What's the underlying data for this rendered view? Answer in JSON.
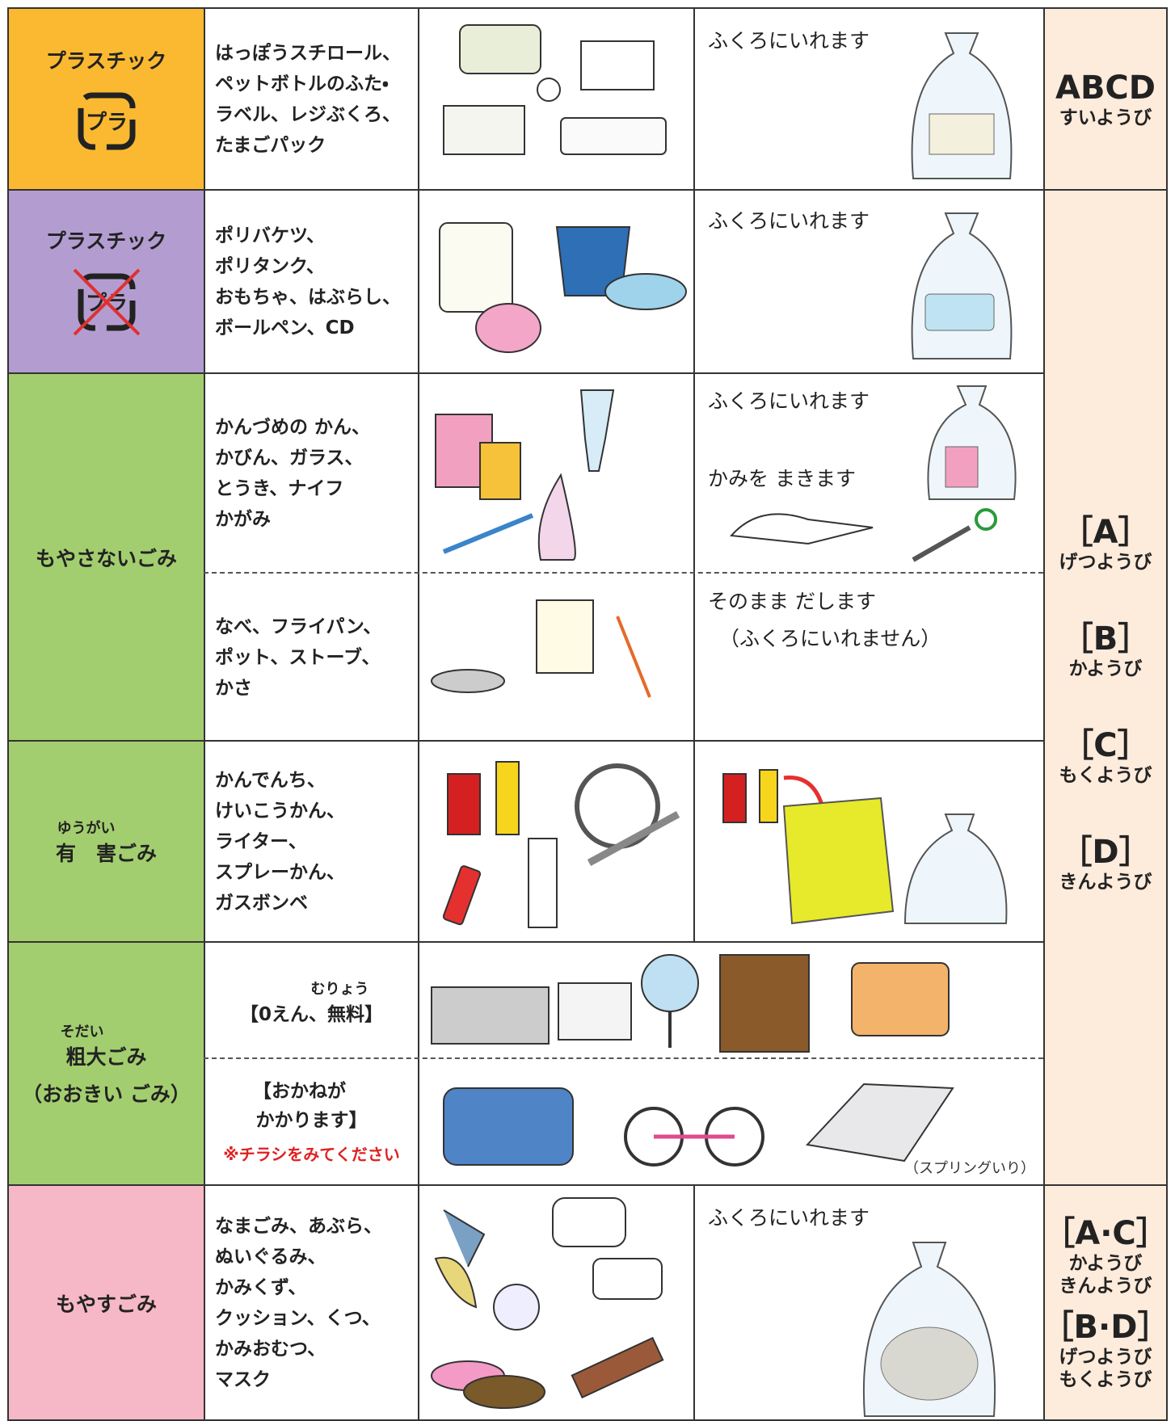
{
  "rows": [
    {
      "category": "プラスチック",
      "mark": "プラ",
      "items": [
        "はっぽうスチロール、",
        "ペットボトルのふた・",
        "ラベル、レジぶくろ、",
        "たまごパック"
      ],
      "instruction": "ふくろにいれます"
    },
    {
      "category": "プラスチック",
      "mark": "プラ",
      "items": [
        "ポリバケツ、",
        "ポリタンク、",
        "おもちゃ、はぶらし、",
        "ボールペン、CD"
      ],
      "instruction": "ふくろにいれます"
    },
    {
      "category": "もやさないごみ",
      "parts": [
        {
          "items": [
            "かんづめの かん、",
            "かびん、ガラス、",
            "とうき、ナイフ",
            "かがみ"
          ],
          "instructions": [
            "ふくろにいれます",
            "かみを まきます"
          ]
        },
        {
          "items": [
            "なべ、フライパン、",
            "ポット、ストーブ、",
            "かさ"
          ],
          "instructions": [
            "そのまま だします",
            "（ふくろにいれません）"
          ]
        }
      ]
    },
    {
      "reading": "ゆうがい",
      "category": "有　害ごみ",
      "items": [
        "かんでんち、",
        "けいこうかん、",
        "ライター、",
        "スプレーかん、",
        "ガスボンベ"
      ]
    },
    {
      "reading": "そだい",
      "category": "粗大ごみ",
      "category_note": "（おおきい ごみ）",
      "parts": [
        {
          "reading": "むりょう",
          "items": [
            "【0えん、無料】"
          ]
        },
        {
          "items": [
            "【おかねが",
            "かかります】"
          ],
          "note": "※チラシをみてください",
          "image_caption": "（スプリングいり）"
        }
      ]
    },
    {
      "category": "もやすごみ",
      "items": [
        "なまごみ、あぶら、",
        "ぬいぐるみ、",
        "かみくず、",
        "クッション、くつ、",
        "かみおむつ、",
        "マスク"
      ],
      "instruction": "ふくろにいれます"
    }
  ],
  "schedules": [
    {
      "groups": [
        {
          "label": "ABCD",
          "days": [
            "すいようび"
          ]
        }
      ]
    },
    {
      "groups": [
        {
          "label": "［A］",
          "days": [
            "げつようび"
          ]
        },
        {
          "label": "［B］",
          "days": [
            "かようび"
          ]
        },
        {
          "label": "［C］",
          "days": [
            "もくようび"
          ]
        },
        {
          "label": "［D］",
          "days": [
            "きんようび"
          ]
        }
      ]
    },
    {
      "groups": [
        {
          "label": "［A·C］",
          "days": [
            "かようび",
            "きんようび"
          ]
        },
        {
          "label": "［B·D］",
          "days": [
            "げつようび",
            "もくようび"
          ]
        }
      ]
    }
  ]
}
